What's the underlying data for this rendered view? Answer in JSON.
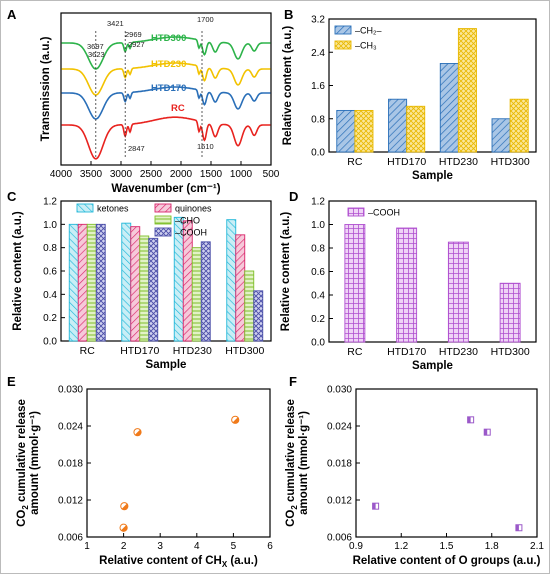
{
  "panels": [
    "A",
    "B",
    "C",
    "D",
    "E",
    "F"
  ],
  "chart_data": [
    {
      "id": "A",
      "type": "line",
      "xlabel": "Wavenumber (cm⁻¹)",
      "ylabel": "Transmission (a.u.)",
      "x_ticks": [
        "4000",
        "3500",
        "3000",
        "2500",
        "2000",
        "1500",
        "1000",
        "500"
      ],
      "xlim": [
        4000,
        500
      ],
      "series": [
        {
          "name": "HTD300",
          "color": "#2db34a"
        },
        {
          "name": "HTD230",
          "color": "#f2c200"
        },
        {
          "name": "HTD170",
          "color": "#2a6fb8"
        },
        {
          "name": "RC",
          "color": "#e8231f"
        }
      ],
      "annotations": [
        "3697",
        "3623",
        "3421",
        "2969",
        "2927",
        "2847",
        "1700",
        "1610"
      ]
    },
    {
      "id": "B",
      "type": "bar",
      "xlabel": "Sample",
      "ylabel": "Relative content (a.u.)",
      "categories": [
        "RC",
        "HTD170",
        "HTD230",
        "HTD300"
      ],
      "ylim": [
        0,
        3.2
      ],
      "y_ticks": [
        "0.0",
        "0.8",
        "1.6",
        "2.4",
        "3.2"
      ],
      "legend_position": "top-left",
      "series": [
        {
          "name": "–CH₂–",
          "values": [
            1.0,
            1.27,
            2.13,
            0.8
          ],
          "color": "#2a6fb8",
          "fill": "#a9c6e6"
        },
        {
          "name": "–CH₃",
          "values": [
            1.0,
            1.1,
            2.97,
            1.27
          ],
          "color": "#e8b800",
          "fill": "#fbe79a"
        }
      ]
    },
    {
      "id": "C",
      "type": "bar",
      "xlabel": "Sample",
      "ylabel": "Relative content (a.u.)",
      "categories": [
        "RC",
        "HTD170",
        "HTD230",
        "HTD300"
      ],
      "ylim": [
        0,
        1.2
      ],
      "y_ticks": [
        "0.0",
        "0.2",
        "0.4",
        "0.6",
        "0.8",
        "1.0",
        "1.2"
      ],
      "legend_position": "top",
      "series": [
        {
          "name": "ketones",
          "values": [
            1.0,
            1.01,
            1.06,
            1.04
          ],
          "color": "#22b8d9",
          "fill": "#c9eef6"
        },
        {
          "name": "quinones",
          "values": [
            1.0,
            0.98,
            1.03,
            0.91
          ],
          "color": "#d9256a",
          "fill": "#f6c9da"
        },
        {
          "name": "–CHO",
          "values": [
            1.0,
            0.9,
            0.8,
            0.6
          ],
          "color": "#7fbf2a",
          "fill": "#e2f2c6"
        },
        {
          "name": "–COOH",
          "values": [
            1.0,
            0.88,
            0.85,
            0.43
          ],
          "color": "#4a4ea8",
          "fill": "#cfd0ef"
        }
      ]
    },
    {
      "id": "D",
      "type": "bar",
      "xlabel": "Sample",
      "ylabel": "Relative content (a.u.)",
      "categories": [
        "RC",
        "HTD170",
        "HTD230",
        "HTD300"
      ],
      "ylim": [
        0,
        1.2
      ],
      "y_ticks": [
        "0.0",
        "0.2",
        "0.4",
        "0.6",
        "0.8",
        "1.0",
        "1.2"
      ],
      "legend_position": "top-left",
      "series": [
        {
          "name": "–COOH",
          "values": [
            1.0,
            0.97,
            0.85,
            0.5
          ],
          "color": "#b04fd0",
          "fill": "#efd3f6"
        }
      ]
    },
    {
      "id": "E",
      "type": "scatter",
      "xlabel": "Relative content of CH",
      "xlabel_sub": "X",
      "xlabel_end": " (a.u.)",
      "ylabel_line1": "CO",
      "ylabel_sub": "2",
      "ylabel_line1_end": " cumulative release",
      "ylabel_line2": "amount (mmol·g⁻¹)",
      "xlim": [
        1,
        6
      ],
      "ylim": [
        0.006,
        0.03
      ],
      "x_ticks": [
        "1",
        "2",
        "3",
        "4",
        "5",
        "6"
      ],
      "y_ticks": [
        "0.006",
        "0.012",
        "0.018",
        "0.024",
        "0.030"
      ],
      "points": [
        {
          "x": 2.0,
          "y": 0.0075
        },
        {
          "x": 2.02,
          "y": 0.011
        },
        {
          "x": 2.38,
          "y": 0.023
        },
        {
          "x": 5.05,
          "y": 0.025
        }
      ],
      "marker": "circle-half",
      "color": "#f07a1a"
    },
    {
      "id": "F",
      "type": "scatter",
      "xlabel": "Relative content of O groups (a.u.)",
      "ylabel_line1": "CO",
      "ylabel_sub": "2",
      "ylabel_line1_end": " cumulative release",
      "ylabel_line2": "amount (mmol·g⁻¹)",
      "xlim": [
        0.9,
        2.1
      ],
      "ylim": [
        0.006,
        0.03
      ],
      "x_ticks": [
        "0.9",
        "1.2",
        "1.5",
        "1.8",
        "2.1"
      ],
      "y_ticks": [
        "0.006",
        "0.012",
        "0.018",
        "0.024",
        "0.030"
      ],
      "points": [
        {
          "x": 1.03,
          "y": 0.011
        },
        {
          "x": 1.66,
          "y": 0.025
        },
        {
          "x": 1.77,
          "y": 0.023
        },
        {
          "x": 1.98,
          "y": 0.0075
        }
      ],
      "marker": "square-half",
      "color": "#9b59c9"
    }
  ]
}
